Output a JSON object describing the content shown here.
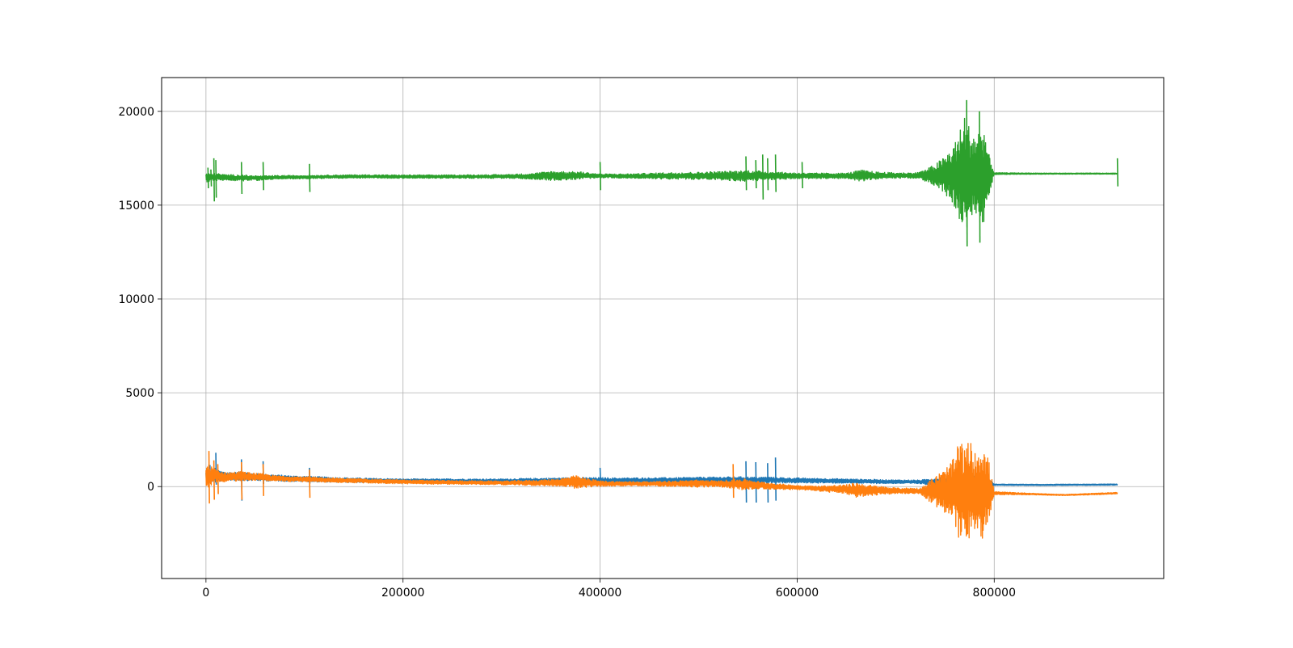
{
  "chart_data": {
    "type": "line",
    "title": "",
    "xlabel": "",
    "ylabel": "",
    "grid": true,
    "xlim": [
      -45000,
      972000
    ],
    "ylim": [
      -4900,
      21800
    ],
    "x_ticks": [
      0,
      200000,
      400000,
      600000,
      800000
    ],
    "x_tick_labels": [
      "0",
      "200000",
      "400000",
      "600000",
      "800000"
    ],
    "y_ticks": [
      0,
      5000,
      10000,
      15000,
      20000
    ],
    "y_tick_labels": [
      "0",
      "5000",
      "10000",
      "15000",
      "20000"
    ],
    "x_range": [
      0,
      925000
    ],
    "series": [
      {
        "color": "#1f77b4",
        "x": [
          0,
          5000,
          9000,
          12000,
          20000,
          30000,
          36000,
          45000,
          58000,
          70000,
          90000,
          105000,
          130000,
          160000,
          200000,
          250000,
          300000,
          330000,
          350000,
          380000,
          400000,
          420000,
          450000,
          480000,
          500000,
          520000,
          540000,
          548000,
          558000,
          570000,
          578000,
          590000,
          610000,
          640000,
          660000,
          680000,
          700000,
          725000,
          740000,
          760000,
          780000,
          795000,
          800000,
          850000,
          900000,
          925000
        ],
        "center": [
          500,
          560,
          600,
          560,
          550,
          540,
          560,
          520,
          480,
          460,
          420,
          400,
          360,
          330,
          300,
          300,
          300,
          310,
          320,
          330,
          330,
          330,
          340,
          340,
          350,
          360,
          370,
          360,
          350,
          360,
          350,
          330,
          320,
          300,
          290,
          270,
          260,
          250,
          250,
          250,
          230,
          200,
          100,
          90,
          100,
          110
        ],
        "amplitude": [
          300,
          280,
          400,
          300,
          240,
          220,
          260,
          200,
          180,
          170,
          150,
          150,
          130,
          120,
          110,
          110,
          110,
          130,
          140,
          150,
          150,
          130,
          130,
          140,
          150,
          150,
          160,
          160,
          150,
          160,
          150,
          140,
          130,
          120,
          110,
          110,
          100,
          100,
          200,
          400,
          450,
          300,
          30,
          30,
          30,
          30
        ],
        "spikes": [
          [
            4000,
            1150
          ],
          [
            10000,
            1800
          ],
          [
            36000,
            1450,
            -750
          ],
          [
            58000,
            1350
          ],
          [
            105000,
            1000
          ],
          [
            400000,
            1000
          ],
          [
            548000,
            1350,
            -850
          ],
          [
            558000,
            1300,
            -850
          ],
          [
            570000,
            1250,
            -850
          ],
          [
            578000,
            1550,
            -750
          ]
        ]
      },
      {
        "color": "#ff7f0e",
        "x": [
          0,
          3000,
          8000,
          12000,
          20000,
          36000,
          45000,
          58000,
          70000,
          90000,
          105000,
          130000,
          160000,
          200000,
          250000,
          300000,
          340000,
          360000,
          375000,
          385000,
          400000,
          420000,
          450000,
          480000,
          500000,
          520000,
          535000,
          545000,
          560000,
          580000,
          600000,
          620000,
          650000,
          660000,
          670000,
          700000,
          725000,
          735000,
          750000,
          760000,
          765000,
          770000,
          775000,
          780000,
          785000,
          790000,
          795000,
          800000,
          840000,
          870000,
          900000,
          925000
        ],
        "center": [
          500,
          560,
          600,
          560,
          500,
          560,
          540,
          500,
          440,
          400,
          380,
          340,
          300,
          250,
          220,
          200,
          200,
          230,
          240,
          200,
          160,
          150,
          150,
          160,
          160,
          150,
          140,
          120,
          80,
          0,
          -50,
          -100,
          -150,
          -180,
          -200,
          -220,
          -230,
          -240,
          -260,
          -250,
          -250,
          -250,
          -250,
          -250,
          -250,
          -240,
          -230,
          -350,
          -400,
          -450,
          -400,
          -350
        ],
        "amplitude": [
          700,
          600,
          400,
          300,
          250,
          250,
          200,
          180,
          150,
          140,
          130,
          120,
          110,
          110,
          100,
          100,
          150,
          200,
          350,
          250,
          150,
          120,
          120,
          150,
          200,
          150,
          250,
          300,
          200,
          150,
          120,
          130,
          250,
          400,
          300,
          150,
          150,
          600,
          1200,
          1800,
          3000,
          2200,
          2800,
          2000,
          2600,
          2500,
          1500,
          80,
          40,
          30,
          40,
          40
        ],
        "spikes": [
          [
            3000,
            1900,
            -900
          ],
          [
            8000,
            1400,
            -700
          ],
          [
            12000,
            1200,
            -400
          ],
          [
            36000,
            1300,
            -700
          ],
          [
            58000,
            1200,
            -500
          ],
          [
            105000,
            900,
            -600
          ],
          [
            535000,
            1200,
            -600
          ]
        ]
      },
      {
        "color": "#2ca02c",
        "x": [
          0,
          5000,
          10000,
          20000,
          36000,
          45000,
          58000,
          70000,
          105000,
          130000,
          160000,
          200000,
          250000,
          300000,
          330000,
          350000,
          380000,
          400000,
          430000,
          470000,
          500000,
          530000,
          550000,
          580000,
          610000,
          650000,
          665000,
          680000,
          700000,
          720000,
          730000,
          740000,
          750000,
          760000,
          765000,
          770000,
          775000,
          780000,
          785000,
          790000,
          795000,
          800000,
          850000,
          925000
        ],
        "center": [
          16450,
          16480,
          16500,
          16480,
          16450,
          16450,
          16440,
          16480,
          16500,
          16520,
          16530,
          16520,
          16520,
          16530,
          16540,
          16560,
          16580,
          16560,
          16550,
          16560,
          16560,
          16560,
          16560,
          16560,
          16560,
          16560,
          16570,
          16570,
          16580,
          16580,
          16580,
          16590,
          16600,
          16550,
          16550,
          16600,
          16580,
          16600,
          16600,
          16600,
          16620,
          16680,
          16680,
          16680
        ],
        "amplitude": [
          250,
          200,
          200,
          150,
          170,
          130,
          120,
          100,
          90,
          90,
          90,
          90,
          90,
          100,
          150,
          250,
          200,
          100,
          120,
          180,
          200,
          250,
          300,
          200,
          150,
          150,
          300,
          200,
          150,
          150,
          300,
          600,
          1000,
          1800,
          2400,
          3300,
          2600,
          2200,
          2500,
          2600,
          1000,
          50,
          30,
          30
        ],
        "spikes": [
          [
            2000,
            17000,
            15900
          ],
          [
            5000,
            16900,
            16000
          ],
          [
            8000,
            17500,
            15200
          ],
          [
            10000,
            17400,
            15400
          ],
          [
            36000,
            17300,
            15600
          ],
          [
            58000,
            17300,
            15800
          ],
          [
            105000,
            17200,
            15700
          ],
          [
            400000,
            17300,
            15800
          ],
          [
            548000,
            17600,
            15800
          ],
          [
            558000,
            17400,
            15900
          ],
          [
            565000,
            17700,
            15300
          ],
          [
            570000,
            17500,
            15800
          ],
          [
            578000,
            17700,
            15700
          ],
          [
            605000,
            17300,
            15900
          ],
          [
            772000,
            20600,
            12800
          ],
          [
            785000,
            20000,
            13000
          ],
          [
            925000,
            17500,
            16000
          ]
        ]
      }
    ]
  }
}
